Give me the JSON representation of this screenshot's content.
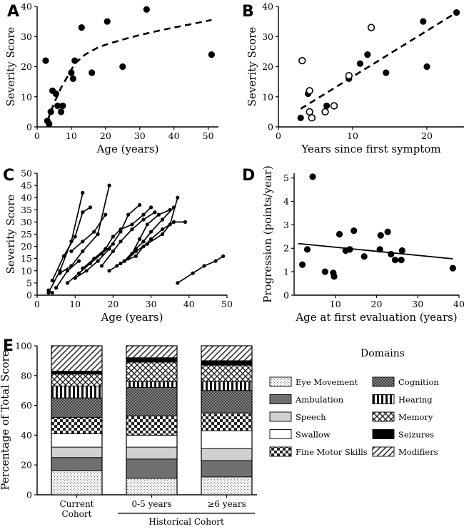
{
  "colors": {
    "ink": "#000000",
    "eye_movement": "#f2f2f2",
    "ambulation": "#6f6f6f",
    "speech": "#cfcfcf",
    "swallow": "#ffffff",
    "fine_motor": "#2a2a2a",
    "cognition": "#8a8a8a",
    "hearing": "#222222",
    "memory": "#333333",
    "seizures": "#000000",
    "modifiers": "#444444"
  },
  "chart_data": [
    {
      "id": "A",
      "panel_label": "A",
      "type": "scatter",
      "xlabel": "Age (years)",
      "ylabel": "Severity Score",
      "xlim": [
        0,
        53
      ],
      "ylim": [
        0,
        40
      ],
      "xticks": [
        0,
        10,
        20,
        30,
        40,
        50
      ],
      "yticks": [
        0,
        10,
        20,
        30,
        40
      ],
      "points": [
        {
          "x": 2.5,
          "y": 22
        },
        {
          "x": 3,
          "y": 2
        },
        {
          "x": 3.5,
          "y": 1
        },
        {
          "x": 4,
          "y": 5
        },
        {
          "x": 4.5,
          "y": 12
        },
        {
          "x": 5.5,
          "y": 11
        },
        {
          "x": 6,
          "y": 7
        },
        {
          "x": 7,
          "y": 5
        },
        {
          "x": 7.5,
          "y": 7
        },
        {
          "x": 10,
          "y": 18
        },
        {
          "x": 10.5,
          "y": 16
        },
        {
          "x": 11,
          "y": 22
        },
        {
          "x": 13,
          "y": 33
        },
        {
          "x": 16,
          "y": 18
        },
        {
          "x": 20.5,
          "y": 35
        },
        {
          "x": 25,
          "y": 20
        },
        {
          "x": 32,
          "y": 39
        },
        {
          "x": 51,
          "y": 24
        }
      ],
      "fit": {
        "style": "dashed",
        "x": [
          3,
          5,
          7,
          9,
          11,
          14,
          18,
          22,
          26,
          30,
          35,
          40,
          45,
          51
        ],
        "y": [
          2,
          8,
          13,
          17,
          21,
          24,
          26.5,
          28,
          29.3,
          30.5,
          31.8,
          33,
          34.1,
          35.5
        ]
      }
    },
    {
      "id": "B",
      "panel_label": "B",
      "type": "scatter",
      "xlabel": "Years since first symptom",
      "ylabel": "Severity Score",
      "xlim": [
        0,
        25
      ],
      "ylim": [
        0,
        40
      ],
      "xticks": [
        0,
        10,
        20
      ],
      "yticks": [
        0,
        10,
        20,
        30,
        40
      ],
      "series": [
        {
          "marker": "filled",
          "points": [
            {
              "x": 3,
              "y": 3
            },
            {
              "x": 4,
              "y": 11
            },
            {
              "x": 6.5,
              "y": 7
            },
            {
              "x": 9.5,
              "y": 16
            },
            {
              "x": 11,
              "y": 21
            },
            {
              "x": 12,
              "y": 24
            },
            {
              "x": 14.5,
              "y": 18
            },
            {
              "x": 19.5,
              "y": 35
            },
            {
              "x": 20,
              "y": 20
            },
            {
              "x": 24,
              "y": 38
            }
          ]
        },
        {
          "marker": "open",
          "points": [
            {
              "x": 3.2,
              "y": 22
            },
            {
              "x": 4.2,
              "y": 12
            },
            {
              "x": 4.2,
              "y": 5
            },
            {
              "x": 4.5,
              "y": 3
            },
            {
              "x": 6.3,
              "y": 5
            },
            {
              "x": 7.5,
              "y": 7
            },
            {
              "x": 9.5,
              "y": 17
            },
            {
              "x": 12.5,
              "y": 33
            }
          ]
        }
      ],
      "fit": {
        "style": "dashed",
        "x": [
          3,
          24
        ],
        "y": [
          6,
          38
        ]
      }
    },
    {
      "id": "C",
      "panel_label": "C",
      "type": "line",
      "xlabel": "Age (years)",
      "ylabel": "Severity Score",
      "xlim": [
        0,
        50
      ],
      "ylim": [
        0,
        50
      ],
      "xticks": [
        0,
        10,
        20,
        30,
        40,
        50
      ],
      "yticks": [
        0,
        5,
        10,
        15,
        20,
        25,
        30,
        35,
        40,
        45,
        50
      ],
      "series": [
        {
          "values": [
            [
              3,
              2
            ],
            [
              4,
              1
            ]
          ]
        },
        {
          "values": [
            [
              3,
              1
            ],
            [
              6,
              10
            ],
            [
              9,
              22
            ],
            [
              12,
              42
            ]
          ]
        },
        {
          "values": [
            [
              5,
              3
            ],
            [
              8,
              10
            ],
            [
              11,
              14
            ]
          ]
        },
        {
          "values": [
            [
              4,
              6
            ],
            [
              7,
              16
            ],
            [
              10,
              24
            ],
            [
              12,
              34
            ],
            [
              14,
              36
            ]
          ]
        },
        {
          "values": [
            [
              6,
              9
            ],
            [
              9,
              12
            ],
            [
              12,
              18
            ],
            [
              16,
              25
            ],
            [
              19,
              45
            ]
          ]
        },
        {
          "values": [
            [
              9,
              18
            ],
            [
              12,
              22
            ],
            [
              15,
              26
            ],
            [
              18,
              33
            ]
          ]
        },
        {
          "values": [
            [
              8,
              5
            ],
            [
              11,
              9
            ],
            [
              14,
              13
            ],
            [
              17,
              17
            ],
            [
              20,
              21
            ]
          ]
        },
        {
          "values": [
            [
              10,
              7
            ],
            [
              13,
              10
            ],
            [
              16,
              14
            ],
            [
              19,
              19
            ],
            [
              22,
              26
            ],
            [
              24,
              33
            ],
            [
              27,
              37
            ]
          ]
        },
        {
          "values": [
            [
              12,
              11
            ],
            [
              15,
              15
            ],
            [
              18,
              19
            ],
            [
              20,
              24
            ],
            [
              22,
              27
            ],
            [
              25,
              29
            ],
            [
              28,
              33
            ],
            [
              30,
              36
            ]
          ]
        },
        {
          "values": [
            [
              17,
              12
            ],
            [
              20,
              18
            ],
            [
              22,
              22
            ],
            [
              25,
              27
            ],
            [
              28,
              31
            ],
            [
              31,
              34
            ]
          ]
        },
        {
          "values": [
            [
              19,
              10
            ],
            [
              22,
              13
            ],
            [
              24,
              15
            ],
            [
              26,
              18
            ],
            [
              29,
              21
            ],
            [
              33,
              25
            ],
            [
              35,
              29
            ],
            [
              37,
              40
            ]
          ]
        },
        {
          "values": [
            [
              21,
              12
            ],
            [
              23,
              14
            ],
            [
              26,
              16
            ],
            [
              28,
              20
            ],
            [
              30,
              23
            ],
            [
              33,
              27
            ],
            [
              36,
              30
            ],
            [
              39,
              30
            ]
          ]
        },
        {
          "values": [
            [
              23,
              14
            ],
            [
              26,
              19
            ],
            [
              28,
              22
            ],
            [
              30,
              26
            ],
            [
              33,
              31
            ],
            [
              36,
              36
            ]
          ]
        },
        {
          "values": [
            [
              25,
              17
            ],
            [
              27,
              23
            ],
            [
              29,
              29
            ],
            [
              32,
              33
            ],
            [
              35,
              35
            ]
          ]
        },
        {
          "values": [
            [
              37,
              5
            ],
            [
              41,
              9
            ],
            [
              44,
              12
            ],
            [
              47,
              14
            ],
            [
              49,
              16
            ]
          ]
        }
      ]
    },
    {
      "id": "D",
      "panel_label": "D",
      "type": "scatter",
      "xlabel": "Age at first evaluation (years)",
      "ylabel": "Progression (points/year)",
      "xlim": [
        0,
        40
      ],
      "ylim": [
        0,
        5.2
      ],
      "xticks": [
        10,
        20,
        30,
        40
      ],
      "yticks": [
        0,
        1,
        2,
        3,
        4,
        5
      ],
      "points": [
        {
          "x": 2,
          "y": 1.3
        },
        {
          "x": 3.2,
          "y": 1.95
        },
        {
          "x": 4.5,
          "y": 5.05
        },
        {
          "x": 7.5,
          "y": 1.0
        },
        {
          "x": 9.5,
          "y": 0.95
        },
        {
          "x": 9.7,
          "y": 0.8
        },
        {
          "x": 11,
          "y": 2.6
        },
        {
          "x": 12.5,
          "y": 1.9
        },
        {
          "x": 13.5,
          "y": 1.95
        },
        {
          "x": 14.5,
          "y": 2.75
        },
        {
          "x": 17,
          "y": 1.65
        },
        {
          "x": 20.8,
          "y": 1.95
        },
        {
          "x": 21,
          "y": 2.55
        },
        {
          "x": 22.7,
          "y": 2.7
        },
        {
          "x": 23.5,
          "y": 1.75
        },
        {
          "x": 24.5,
          "y": 1.5
        },
        {
          "x": 26,
          "y": 1.5
        },
        {
          "x": 26.2,
          "y": 1.9
        },
        {
          "x": 38.5,
          "y": 1.15
        }
      ],
      "fit": {
        "style": "solid",
        "x": [
          1,
          38.5
        ],
        "y": [
          2.2,
          1.55
        ]
      }
    },
    {
      "id": "E",
      "panel_label": "E",
      "type": "bar",
      "stacked": true,
      "ylabel": "Percentage of Total Score",
      "ylim": [
        0,
        100
      ],
      "yticks": [
        0,
        20,
        40,
        60,
        80,
        100
      ],
      "categories": [
        {
          "lines": [
            "Current",
            "Cohort"
          ]
        },
        {
          "lines": [
            "0-5 years"
          ]
        },
        {
          "lines": [
            "≥6 years"
          ]
        }
      ],
      "group_label": "Historical Cohort",
      "legend_title": "Domains",
      "series": [
        {
          "name": "Eye Movement",
          "pattern": "eye_movement",
          "values": [
            16,
            11,
            12
          ]
        },
        {
          "name": "Ambulation",
          "pattern": "ambulation",
          "values": [
            9,
            13,
            11
          ]
        },
        {
          "name": "Speech",
          "pattern": "speech",
          "values": [
            7,
            8,
            8
          ]
        },
        {
          "name": "Swallow",
          "pattern": "swallow",
          "values": [
            9,
            8,
            12
          ]
        },
        {
          "name": "Fine Motor Skills",
          "pattern": "fine_motor",
          "values": [
            11,
            13,
            12
          ]
        },
        {
          "name": "Cognition",
          "pattern": "cognition",
          "values": [
            13,
            19,
            15
          ]
        },
        {
          "name": "Hearing",
          "pattern": "hearing",
          "values": [
            8,
            4,
            6
          ]
        },
        {
          "name": "Memory",
          "pattern": "memory",
          "values": [
            8,
            13,
            11
          ]
        },
        {
          "name": "Seizures",
          "pattern": "seizures",
          "values": [
            2,
            3,
            3
          ]
        },
        {
          "name": "Modifiers",
          "pattern": "modifiers",
          "values": [
            17,
            8,
            10
          ]
        }
      ],
      "legend_order": [
        "Eye Movement",
        "Cognition",
        "Ambulation",
        "Hearing",
        "Speech",
        "Memory",
        "Swallow",
        "Seizures",
        "Fine Motor Skills",
        "Modifiers"
      ]
    }
  ]
}
